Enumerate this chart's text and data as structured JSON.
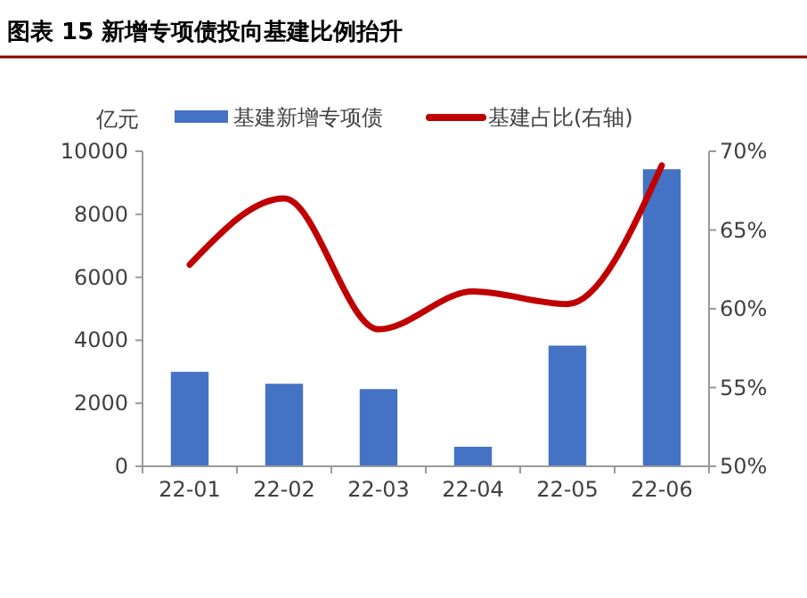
{
  "chart_data": {
    "type": "bar",
    "title": "图表 15 新增专项债投向基建比例抬升",
    "ylabel": "亿元",
    "categories": [
      "22-01",
      "22-02",
      "22-03",
      "22-04",
      "22-05",
      "22-06"
    ],
    "series": [
      {
        "name": "基建新增专项债",
        "color": "#4472c4",
        "values": [
          3000,
          2620,
          2450,
          620,
          3830,
          9430
        ]
      },
      {
        "name": "基建占比(右轴)",
        "type": "line",
        "axis": "y2",
        "color": "#c00000",
        "values": [
          62.8,
          67.0,
          58.7,
          61.1,
          60.3,
          69.1
        ]
      }
    ],
    "ylim": [
      0,
      10000
    ],
    "yticks": [
      0,
      2000,
      4000,
      6000,
      8000,
      10000
    ],
    "y2lim": [
      50,
      70
    ],
    "y2ticks": [
      {
        "value": 50,
        "label": "50%"
      },
      {
        "value": 55,
        "label": "55%"
      },
      {
        "value": 60,
        "label": "60%"
      },
      {
        "value": 65,
        "label": "65%"
      },
      {
        "value": 70,
        "label": "70%"
      }
    ],
    "legend": "top",
    "grid": false
  }
}
